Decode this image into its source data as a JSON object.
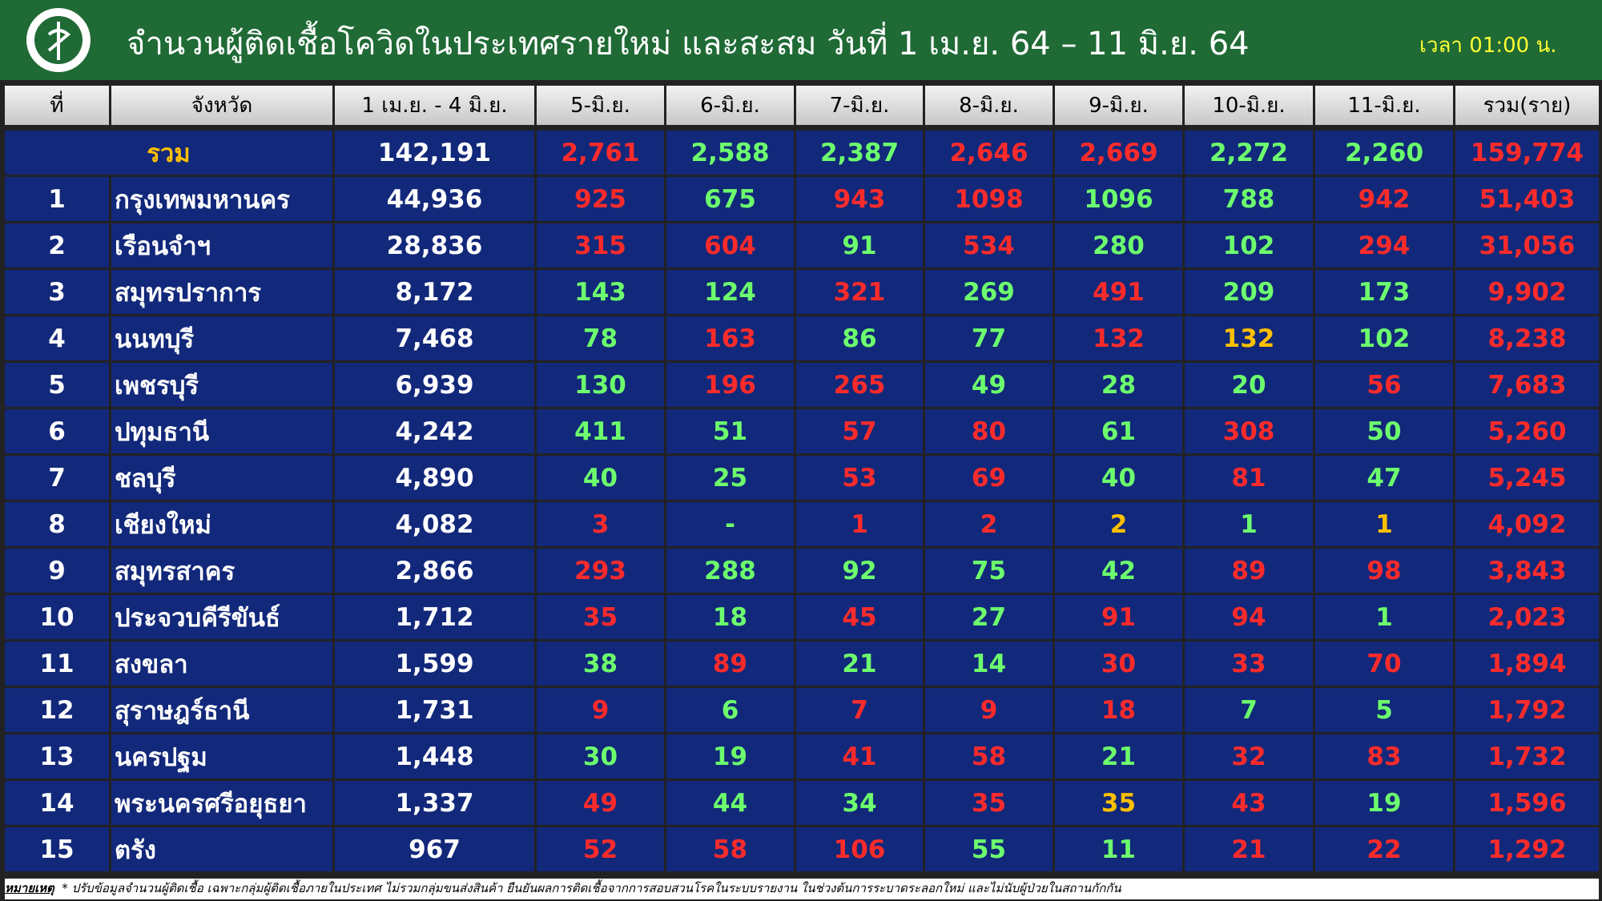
{
  "header": {
    "title": "จำนวนผู้ติดเชื้อโควิดในประเทศรายใหม่ และสะสม วันที่ 1 เม.ย. 64 – 11 มิ.ย. 64",
    "time": "เวลา 01:00 น."
  },
  "palette": {
    "r": "#ff2b2b",
    "g": "#6dff6d",
    "y": "#ffc000",
    "w": "#ffffff"
  },
  "table": {
    "columns": [
      "ที่",
      "จังหวัด",
      "1 เม.ย. - 4 มิ.ย.",
      "5-มิ.ย.",
      "6-มิ.ย.",
      "7-มิ.ย.",
      "8-มิ.ย.",
      "9-มิ.ย.",
      "10-มิ.ย.",
      "11-มิ.ย.",
      "รวม(ราย)"
    ],
    "total": {
      "label": "รวม",
      "cells": [
        "142,191",
        "2,761",
        "2,588",
        "2,387",
        "2,646",
        "2,669",
        "2,272",
        "2,260",
        "159,774"
      ],
      "tones": [
        "w",
        "r",
        "g",
        "g",
        "r",
        "r",
        "g",
        "g",
        "r"
      ]
    },
    "rows": [
      {
        "cells": [
          "1",
          "กรุงเทพมหานคร",
          "44,936",
          "925",
          "675",
          "943",
          "1098",
          "1096",
          "788",
          "942",
          "51,403"
        ],
        "tones": [
          "w",
          "w",
          "w",
          "r",
          "g",
          "r",
          "r",
          "g",
          "g",
          "r",
          "r"
        ]
      },
      {
        "cells": [
          "2",
          "เรือนจำฯ",
          "28,836",
          "315",
          "604",
          "91",
          "534",
          "280",
          "102",
          "294",
          "31,056"
        ],
        "tones": [
          "w",
          "w",
          "w",
          "r",
          "r",
          "g",
          "r",
          "g",
          "g",
          "r",
          "r"
        ]
      },
      {
        "cells": [
          "3",
          "สมุทรปราการ",
          "8,172",
          "143",
          "124",
          "321",
          "269",
          "491",
          "209",
          "173",
          "9,902"
        ],
        "tones": [
          "w",
          "w",
          "w",
          "g",
          "g",
          "r",
          "g",
          "r",
          "g",
          "g",
          "r"
        ]
      },
      {
        "cells": [
          "4",
          "นนทบุรี",
          "7,468",
          "78",
          "163",
          "86",
          "77",
          "132",
          "132",
          "102",
          "8,238"
        ],
        "tones": [
          "w",
          "w",
          "w",
          "g",
          "r",
          "g",
          "g",
          "r",
          "y",
          "g",
          "r"
        ]
      },
      {
        "cells": [
          "5",
          "เพชรบุรี",
          "6,939",
          "130",
          "196",
          "265",
          "49",
          "28",
          "20",
          "56",
          "7,683"
        ],
        "tones": [
          "w",
          "w",
          "w",
          "g",
          "r",
          "r",
          "g",
          "g",
          "g",
          "r",
          "r"
        ]
      },
      {
        "cells": [
          "6",
          "ปทุมธานี",
          "4,242",
          "411",
          "51",
          "57",
          "80",
          "61",
          "308",
          "50",
          "5,260"
        ],
        "tones": [
          "w",
          "w",
          "w",
          "g",
          "g",
          "r",
          "r",
          "g",
          "r",
          "g",
          "r"
        ]
      },
      {
        "cells": [
          "7",
          "ชลบุรี",
          "4,890",
          "40",
          "25",
          "53",
          "69",
          "40",
          "81",
          "47",
          "5,245"
        ],
        "tones": [
          "w",
          "w",
          "w",
          "g",
          "g",
          "r",
          "r",
          "g",
          "r",
          "g",
          "r"
        ]
      },
      {
        "cells": [
          "8",
          "เชียงใหม่",
          "4,082",
          "3",
          "-",
          "1",
          "2",
          "2",
          "1",
          "1",
          "4,092"
        ],
        "tones": [
          "w",
          "w",
          "w",
          "r",
          "g",
          "r",
          "r",
          "y",
          "g",
          "y",
          "r"
        ]
      },
      {
        "cells": [
          "9",
          "สมุทรสาคร",
          "2,866",
          "293",
          "288",
          "92",
          "75",
          "42",
          "89",
          "98",
          "3,843"
        ],
        "tones": [
          "w",
          "w",
          "w",
          "r",
          "g",
          "g",
          "g",
          "g",
          "r",
          "r",
          "r"
        ]
      },
      {
        "cells": [
          "10",
          "ประจวบคีรีขันธ์",
          "1,712",
          "35",
          "18",
          "45",
          "27",
          "91",
          "94",
          "1",
          "2,023"
        ],
        "tones": [
          "w",
          "w",
          "w",
          "r",
          "g",
          "r",
          "g",
          "r",
          "r",
          "g",
          "r"
        ]
      },
      {
        "cells": [
          "11",
          "สงขลา",
          "1,599",
          "38",
          "89",
          "21",
          "14",
          "30",
          "33",
          "70",
          "1,894"
        ],
        "tones": [
          "w",
          "w",
          "w",
          "g",
          "r",
          "g",
          "g",
          "r",
          "r",
          "r",
          "r"
        ]
      },
      {
        "cells": [
          "12",
          "สุราษฎร์ธานี",
          "1,731",
          "9",
          "6",
          "7",
          "9",
          "18",
          "7",
          "5",
          "1,792"
        ],
        "tones": [
          "w",
          "w",
          "w",
          "r",
          "g",
          "r",
          "r",
          "r",
          "g",
          "g",
          "r"
        ]
      },
      {
        "cells": [
          "13",
          "นครปฐม",
          "1,448",
          "30",
          "19",
          "41",
          "58",
          "21",
          "32",
          "83",
          "1,732"
        ],
        "tones": [
          "w",
          "w",
          "w",
          "g",
          "g",
          "r",
          "r",
          "g",
          "r",
          "r",
          "r"
        ]
      },
      {
        "cells": [
          "14",
          "พระนครศรีอยุธยา",
          "1,337",
          "49",
          "44",
          "34",
          "35",
          "35",
          "43",
          "19",
          "1,596"
        ],
        "tones": [
          "w",
          "w",
          "w",
          "r",
          "g",
          "g",
          "r",
          "y",
          "r",
          "g",
          "r"
        ]
      },
      {
        "cells": [
          "15",
          "ตรัง",
          "967",
          "52",
          "58",
          "106",
          "55",
          "11",
          "21",
          "22",
          "1,292"
        ],
        "tones": [
          "w",
          "w",
          "w",
          "r",
          "r",
          "r",
          "g",
          "g",
          "r",
          "r",
          "r"
        ]
      }
    ]
  },
  "footnote": {
    "label": "หมายเหตุ",
    "text": "* ปรับข้อมูลจำนวนผู้ติดเชื้อ เฉพาะกลุ่มผู้ติดเชื้อภายในประเทศ ไม่รวมกลุ่มขนส่งสินค้า ยืนยันผลการติดเชื้อจากการสอบสวนโรคในระบบรายงาน ในช่วงต้นการระบาดระลอกใหม่ และไม่นับผู้ป่วยในสถานกักกัน"
  }
}
